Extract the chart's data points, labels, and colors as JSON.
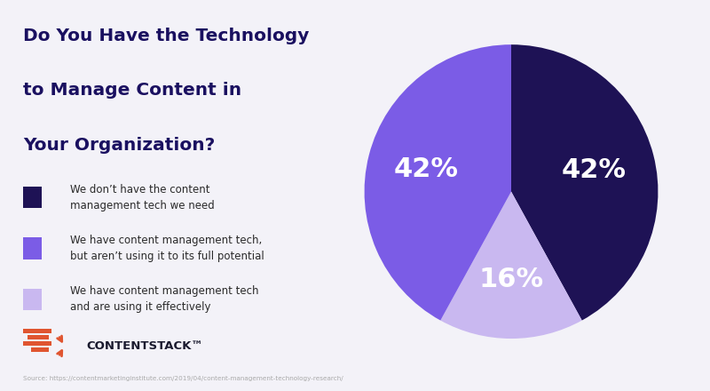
{
  "title_line1": "Do You Have the Technology",
  "title_line2": "to Manage Content in",
  "title_line3": "Your Organization?",
  "title_color": "#1a1060",
  "background_color": "#f3f2f8",
  "slices": [
    42,
    16,
    42
  ],
  "slice_colors": [
    "#1e1255",
    "#c9b8f0",
    "#7b5ce6"
  ],
  "slice_labels": [
    "42%",
    "16%",
    "42%"
  ],
  "label_positions_r": [
    0.58,
    0.6,
    0.6
  ],
  "legend_labels": [
    "We don’t have the content\nmanagement tech we need",
    "We have content management tech,\nbut aren’t using it to its full potential",
    "We have content management tech\nand are using it effectively"
  ],
  "legend_colors": [
    "#1e1255",
    "#7b5ce6",
    "#c9b8f0"
  ],
  "source_text": "Source: https://contentmarketinginstitute.com/2019/04/content-management-technology-research/",
  "source_color": "#aaaaaa",
  "label_color": "#ffffff",
  "label_fontsize": 22,
  "startangle": 90
}
